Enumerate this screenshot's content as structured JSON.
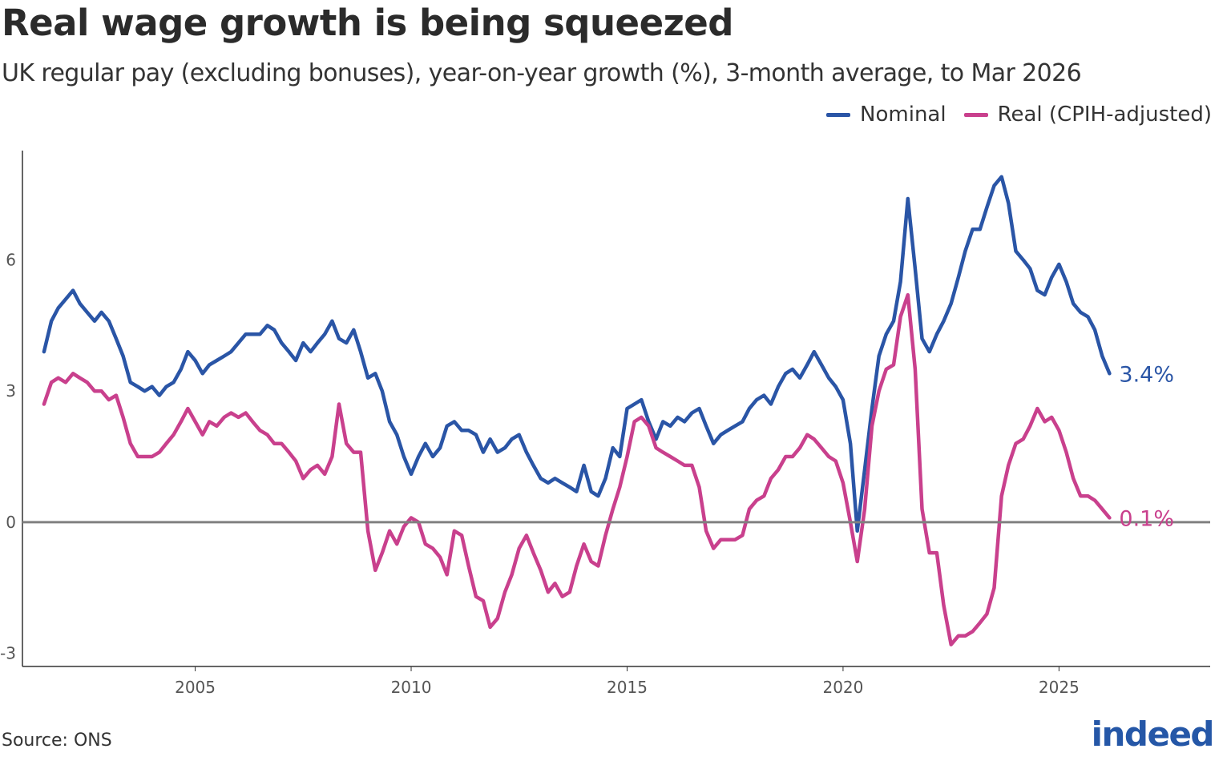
{
  "title": "Real wage growth is being squeezed",
  "subtitle": "UK regular pay (excluding bonuses), year-on-year growth (%), 3-month average, to Mar 2026",
  "source": "Source: ONS",
  "logo": "indeed",
  "colors": {
    "nominal": "#2a55a6",
    "real": "#c9408d",
    "zero_line": "#808080",
    "axis": "#333333",
    "logo": "#2557a7"
  },
  "chart_data": {
    "type": "line",
    "title": "Real wage growth is being squeezed",
    "xlabel": "",
    "ylabel": "",
    "xlim": [
      2001.0,
      2028.5
    ],
    "ylim": [
      -3.3,
      8.5
    ],
    "x_ticks": [
      2005,
      2010,
      2015,
      2020,
      2025
    ],
    "y_ticks": [
      -3,
      0,
      3,
      6
    ],
    "legend_position": "top-right",
    "grid": false,
    "series": [
      {
        "name": "Nominal",
        "end_label": "3.4%",
        "points": [
          [
            2001.5,
            3.9
          ],
          [
            2001.67,
            4.6
          ],
          [
            2001.83,
            4.9
          ],
          [
            2002.0,
            5.1
          ],
          [
            2002.17,
            5.3
          ],
          [
            2002.33,
            5.0
          ],
          [
            2002.5,
            4.8
          ],
          [
            2002.67,
            4.6
          ],
          [
            2002.83,
            4.8
          ],
          [
            2003.0,
            4.6
          ],
          [
            2003.17,
            4.2
          ],
          [
            2003.33,
            3.8
          ],
          [
            2003.5,
            3.2
          ],
          [
            2003.67,
            3.1
          ],
          [
            2003.83,
            3.0
          ],
          [
            2004.0,
            3.1
          ],
          [
            2004.17,
            2.9
          ],
          [
            2004.33,
            3.1
          ],
          [
            2004.5,
            3.2
          ],
          [
            2004.67,
            3.5
          ],
          [
            2004.83,
            3.9
          ],
          [
            2005.0,
            3.7
          ],
          [
            2005.17,
            3.4
          ],
          [
            2005.33,
            3.6
          ],
          [
            2005.5,
            3.7
          ],
          [
            2005.67,
            3.8
          ],
          [
            2005.83,
            3.9
          ],
          [
            2006.0,
            4.1
          ],
          [
            2006.17,
            4.3
          ],
          [
            2006.33,
            4.3
          ],
          [
            2006.5,
            4.3
          ],
          [
            2006.67,
            4.5
          ],
          [
            2006.83,
            4.4
          ],
          [
            2007.0,
            4.1
          ],
          [
            2007.17,
            3.9
          ],
          [
            2007.33,
            3.7
          ],
          [
            2007.5,
            4.1
          ],
          [
            2007.67,
            3.9
          ],
          [
            2007.83,
            4.1
          ],
          [
            2008.0,
            4.3
          ],
          [
            2008.17,
            4.6
          ],
          [
            2008.33,
            4.2
          ],
          [
            2008.5,
            4.1
          ],
          [
            2008.67,
            4.4
          ],
          [
            2008.83,
            3.9
          ],
          [
            2009.0,
            3.3
          ],
          [
            2009.17,
            3.4
          ],
          [
            2009.33,
            3.0
          ],
          [
            2009.5,
            2.3
          ],
          [
            2009.67,
            2.0
          ],
          [
            2009.83,
            1.5
          ],
          [
            2010.0,
            1.1
          ],
          [
            2010.17,
            1.5
          ],
          [
            2010.33,
            1.8
          ],
          [
            2010.5,
            1.5
          ],
          [
            2010.67,
            1.7
          ],
          [
            2010.83,
            2.2
          ],
          [
            2011.0,
            2.3
          ],
          [
            2011.17,
            2.1
          ],
          [
            2011.33,
            2.1
          ],
          [
            2011.5,
            2.0
          ],
          [
            2011.67,
            1.6
          ],
          [
            2011.83,
            1.9
          ],
          [
            2012.0,
            1.6
          ],
          [
            2012.17,
            1.7
          ],
          [
            2012.33,
            1.9
          ],
          [
            2012.5,
            2.0
          ],
          [
            2012.67,
            1.6
          ],
          [
            2012.83,
            1.3
          ],
          [
            2013.0,
            1.0
          ],
          [
            2013.17,
            0.9
          ],
          [
            2013.33,
            1.0
          ],
          [
            2013.5,
            0.9
          ],
          [
            2013.67,
            0.8
          ],
          [
            2013.83,
            0.7
          ],
          [
            2014.0,
            1.3
          ],
          [
            2014.17,
            0.7
          ],
          [
            2014.33,
            0.6
          ],
          [
            2014.5,
            1.0
          ],
          [
            2014.67,
            1.7
          ],
          [
            2014.83,
            1.5
          ],
          [
            2015.0,
            2.6
          ],
          [
            2015.17,
            2.7
          ],
          [
            2015.33,
            2.8
          ],
          [
            2015.5,
            2.3
          ],
          [
            2015.67,
            1.9
          ],
          [
            2015.83,
            2.3
          ],
          [
            2016.0,
            2.2
          ],
          [
            2016.17,
            2.4
          ],
          [
            2016.33,
            2.3
          ],
          [
            2016.5,
            2.5
          ],
          [
            2016.67,
            2.6
          ],
          [
            2016.83,
            2.2
          ],
          [
            2017.0,
            1.8
          ],
          [
            2017.17,
            2.0
          ],
          [
            2017.33,
            2.1
          ],
          [
            2017.5,
            2.2
          ],
          [
            2017.67,
            2.3
          ],
          [
            2017.83,
            2.6
          ],
          [
            2018.0,
            2.8
          ],
          [
            2018.17,
            2.9
          ],
          [
            2018.33,
            2.7
          ],
          [
            2018.5,
            3.1
          ],
          [
            2018.67,
            3.4
          ],
          [
            2018.83,
            3.5
          ],
          [
            2019.0,
            3.3
          ],
          [
            2019.17,
            3.6
          ],
          [
            2019.33,
            3.9
          ],
          [
            2019.5,
            3.6
          ],
          [
            2019.67,
            3.3
          ],
          [
            2019.83,
            3.1
          ],
          [
            2020.0,
            2.8
          ],
          [
            2020.17,
            1.8
          ],
          [
            2020.33,
            -0.2
          ],
          [
            2020.5,
            1.2
          ],
          [
            2020.67,
            2.6
          ],
          [
            2020.83,
            3.8
          ],
          [
            2021.0,
            4.3
          ],
          [
            2021.17,
            4.6
          ],
          [
            2021.33,
            5.5
          ],
          [
            2021.5,
            7.4
          ],
          [
            2021.67,
            5.8
          ],
          [
            2021.83,
            4.2
          ],
          [
            2022.0,
            3.9
          ],
          [
            2022.17,
            4.3
          ],
          [
            2022.33,
            4.6
          ],
          [
            2022.5,
            5.0
          ],
          [
            2022.67,
            5.6
          ],
          [
            2022.83,
            6.2
          ],
          [
            2023.0,
            6.7
          ],
          [
            2023.17,
            6.7
          ],
          [
            2023.33,
            7.2
          ],
          [
            2023.5,
            7.7
          ],
          [
            2023.67,
            7.9
          ],
          [
            2023.83,
            7.3
          ],
          [
            2024.0,
            6.2
          ],
          [
            2024.17,
            6.0
          ],
          [
            2024.33,
            5.8
          ],
          [
            2024.5,
            5.3
          ],
          [
            2024.67,
            5.2
          ],
          [
            2024.83,
            5.6
          ],
          [
            2025.0,
            5.9
          ],
          [
            2025.17,
            5.5
          ],
          [
            2025.33,
            5.0
          ],
          [
            2025.5,
            4.8
          ],
          [
            2025.67,
            4.7
          ],
          [
            2025.83,
            4.4
          ],
          [
            2026.0,
            3.8
          ],
          [
            2026.17,
            3.4
          ]
        ]
      },
      {
        "name": "Real (CPIH-adjusted)",
        "end_label": "0.1%",
        "points": [
          [
            2001.5,
            2.7
          ],
          [
            2001.67,
            3.2
          ],
          [
            2001.83,
            3.3
          ],
          [
            2002.0,
            3.2
          ],
          [
            2002.17,
            3.4
          ],
          [
            2002.33,
            3.3
          ],
          [
            2002.5,
            3.2
          ],
          [
            2002.67,
            3.0
          ],
          [
            2002.83,
            3.0
          ],
          [
            2003.0,
            2.8
          ],
          [
            2003.17,
            2.9
          ],
          [
            2003.33,
            2.4
          ],
          [
            2003.5,
            1.8
          ],
          [
            2003.67,
            1.5
          ],
          [
            2003.83,
            1.5
          ],
          [
            2004.0,
            1.5
          ],
          [
            2004.17,
            1.6
          ],
          [
            2004.33,
            1.8
          ],
          [
            2004.5,
            2.0
          ],
          [
            2004.67,
            2.3
          ],
          [
            2004.83,
            2.6
          ],
          [
            2005.0,
            2.3
          ],
          [
            2005.17,
            2.0
          ],
          [
            2005.33,
            2.3
          ],
          [
            2005.5,
            2.2
          ],
          [
            2005.67,
            2.4
          ],
          [
            2005.83,
            2.5
          ],
          [
            2006.0,
            2.4
          ],
          [
            2006.17,
            2.5
          ],
          [
            2006.33,
            2.3
          ],
          [
            2006.5,
            2.1
          ],
          [
            2006.67,
            2.0
          ],
          [
            2006.83,
            1.8
          ],
          [
            2007.0,
            1.8
          ],
          [
            2007.17,
            1.6
          ],
          [
            2007.33,
            1.4
          ],
          [
            2007.5,
            1.0
          ],
          [
            2007.67,
            1.2
          ],
          [
            2007.83,
            1.3
          ],
          [
            2008.0,
            1.1
          ],
          [
            2008.17,
            1.5
          ],
          [
            2008.33,
            2.7
          ],
          [
            2008.5,
            1.8
          ],
          [
            2008.67,
            1.6
          ],
          [
            2008.83,
            1.6
          ],
          [
            2009.0,
            -0.2
          ],
          [
            2009.17,
            -1.1
          ],
          [
            2009.33,
            -0.7
          ],
          [
            2009.5,
            -0.2
          ],
          [
            2009.67,
            -0.5
          ],
          [
            2009.83,
            -0.1
          ],
          [
            2010.0,
            0.1
          ],
          [
            2010.17,
            0.0
          ],
          [
            2010.33,
            -0.5
          ],
          [
            2010.5,
            -0.6
          ],
          [
            2010.67,
            -0.8
          ],
          [
            2010.83,
            -1.2
          ],
          [
            2011.0,
            -0.2
          ],
          [
            2011.17,
            -0.3
          ],
          [
            2011.33,
            -1.0
          ],
          [
            2011.5,
            -1.7
          ],
          [
            2011.67,
            -1.8
          ],
          [
            2011.83,
            -2.4
          ],
          [
            2012.0,
            -2.2
          ],
          [
            2012.17,
            -1.6
          ],
          [
            2012.33,
            -1.2
          ],
          [
            2012.5,
            -0.6
          ],
          [
            2012.67,
            -0.3
          ],
          [
            2012.83,
            -0.7
          ],
          [
            2013.0,
            -1.1
          ],
          [
            2013.17,
            -1.6
          ],
          [
            2013.33,
            -1.4
          ],
          [
            2013.5,
            -1.7
          ],
          [
            2013.67,
            -1.6
          ],
          [
            2013.83,
            -1.0
          ],
          [
            2014.0,
            -0.5
          ],
          [
            2014.17,
            -0.9
          ],
          [
            2014.33,
            -1.0
          ],
          [
            2014.5,
            -0.3
          ],
          [
            2014.67,
            0.3
          ],
          [
            2014.83,
            0.8
          ],
          [
            2015.0,
            1.5
          ],
          [
            2015.17,
            2.3
          ],
          [
            2015.33,
            2.4
          ],
          [
            2015.5,
            2.2
          ],
          [
            2015.67,
            1.7
          ],
          [
            2015.83,
            1.6
          ],
          [
            2016.0,
            1.5
          ],
          [
            2016.17,
            1.4
          ],
          [
            2016.33,
            1.3
          ],
          [
            2016.5,
            1.3
          ],
          [
            2016.67,
            0.8
          ],
          [
            2016.83,
            -0.2
          ],
          [
            2017.0,
            -0.6
          ],
          [
            2017.17,
            -0.4
          ],
          [
            2017.33,
            -0.4
          ],
          [
            2017.5,
            -0.4
          ],
          [
            2017.67,
            -0.3
          ],
          [
            2017.83,
            0.3
          ],
          [
            2018.0,
            0.5
          ],
          [
            2018.17,
            0.6
          ],
          [
            2018.33,
            1.0
          ],
          [
            2018.5,
            1.2
          ],
          [
            2018.67,
            1.5
          ],
          [
            2018.83,
            1.5
          ],
          [
            2019.0,
            1.7
          ],
          [
            2019.17,
            2.0
          ],
          [
            2019.33,
            1.9
          ],
          [
            2019.5,
            1.7
          ],
          [
            2019.67,
            1.5
          ],
          [
            2019.83,
            1.4
          ],
          [
            2020.0,
            0.9
          ],
          [
            2020.17,
            0.0
          ],
          [
            2020.33,
            -0.9
          ],
          [
            2020.5,
            0.3
          ],
          [
            2020.67,
            2.2
          ],
          [
            2020.83,
            3.0
          ],
          [
            2021.0,
            3.5
          ],
          [
            2021.17,
            3.6
          ],
          [
            2021.33,
            4.7
          ],
          [
            2021.5,
            5.2
          ],
          [
            2021.67,
            3.5
          ],
          [
            2021.83,
            0.3
          ],
          [
            2022.0,
            -0.7
          ],
          [
            2022.17,
            -0.7
          ],
          [
            2022.33,
            -1.9
          ],
          [
            2022.5,
            -2.8
          ],
          [
            2022.67,
            -2.6
          ],
          [
            2022.83,
            -2.6
          ],
          [
            2023.0,
            -2.5
          ],
          [
            2023.17,
            -2.3
          ],
          [
            2023.33,
            -2.1
          ],
          [
            2023.5,
            -1.5
          ],
          [
            2023.67,
            0.6
          ],
          [
            2023.83,
            1.3
          ],
          [
            2024.0,
            1.8
          ],
          [
            2024.17,
            1.9
          ],
          [
            2024.33,
            2.2
          ],
          [
            2024.5,
            2.6
          ],
          [
            2024.67,
            2.3
          ],
          [
            2024.83,
            2.4
          ],
          [
            2025.0,
            2.1
          ],
          [
            2025.17,
            1.6
          ],
          [
            2025.33,
            1.0
          ],
          [
            2025.5,
            0.6
          ],
          [
            2025.67,
            0.6
          ],
          [
            2025.83,
            0.5
          ],
          [
            2026.0,
            0.3
          ],
          [
            2026.17,
            0.1
          ]
        ]
      }
    ]
  }
}
